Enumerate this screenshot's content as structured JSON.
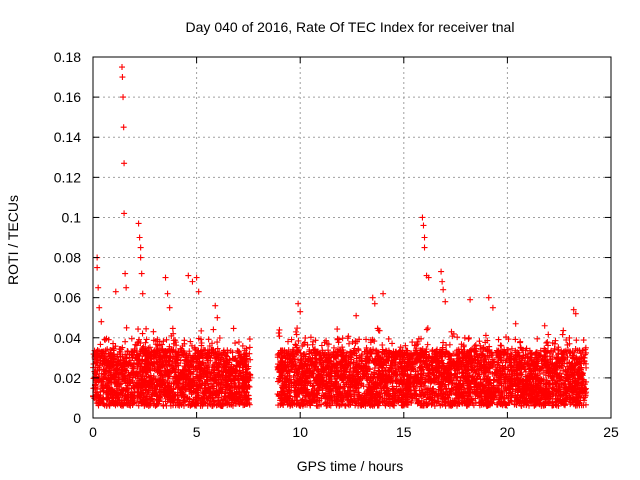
{
  "chart_data": {
    "type": "scatter",
    "title": "Day 040 of 2016, Rate Of TEC Index for receiver tnal",
    "xlabel": "GPS time / hours",
    "ylabel": "ROTI / TECUs",
    "xlim": [
      0,
      25
    ],
    "ylim": [
      0,
      0.18
    ],
    "xticks": [
      0,
      5,
      10,
      15,
      20,
      25
    ],
    "xtick_labels": [
      "0",
      "5",
      "10",
      "15",
      "20",
      "25"
    ],
    "yticks": [
      0,
      0.02,
      0.04,
      0.06,
      0.08,
      0.1,
      0.12,
      0.14,
      0.16,
      0.18
    ],
    "ytick_labels": [
      "0",
      "0.02",
      "0.04",
      "0.06",
      "0.08",
      "0.1",
      "0.12",
      "0.14",
      "0.16",
      "0.18"
    ],
    "grid": true,
    "marker": "+",
    "series_color": "#ff0000",
    "data_gap": [
      7.6,
      8.9
    ],
    "segments": [
      {
        "x": [
          0,
          7.6
        ],
        "base": [
          0.005,
          0.04
        ],
        "dense_max": 0.045
      },
      {
        "x": [
          8.9,
          23.8
        ],
        "base": [
          0.005,
          0.04
        ],
        "dense_max": 0.045
      }
    ],
    "outliers": [
      {
        "x": 0.2,
        "y": 0.08
      },
      {
        "x": 0.2,
        "y": 0.075
      },
      {
        "x": 0.25,
        "y": 0.065
      },
      {
        "x": 0.3,
        "y": 0.055
      },
      {
        "x": 0.4,
        "y": 0.048
      },
      {
        "x": 1.1,
        "y": 0.063
      },
      {
        "x": 1.4,
        "y": 0.175
      },
      {
        "x": 1.42,
        "y": 0.17
      },
      {
        "x": 1.45,
        "y": 0.16
      },
      {
        "x": 1.48,
        "y": 0.145
      },
      {
        "x": 1.5,
        "y": 0.127
      },
      {
        "x": 1.5,
        "y": 0.102
      },
      {
        "x": 1.55,
        "y": 0.072
      },
      {
        "x": 1.6,
        "y": 0.065
      },
      {
        "x": 2.2,
        "y": 0.097
      },
      {
        "x": 2.25,
        "y": 0.09
      },
      {
        "x": 2.3,
        "y": 0.085
      },
      {
        "x": 2.3,
        "y": 0.08
      },
      {
        "x": 2.35,
        "y": 0.072
      },
      {
        "x": 2.4,
        "y": 0.062
      },
      {
        "x": 3.5,
        "y": 0.07
      },
      {
        "x": 3.6,
        "y": 0.062
      },
      {
        "x": 3.7,
        "y": 0.055
      },
      {
        "x": 4.6,
        "y": 0.071
      },
      {
        "x": 4.8,
        "y": 0.068
      },
      {
        "x": 5.0,
        "y": 0.07
      },
      {
        "x": 5.1,
        "y": 0.063
      },
      {
        "x": 5.9,
        "y": 0.056
      },
      {
        "x": 6.0,
        "y": 0.05
      },
      {
        "x": 9.9,
        "y": 0.057
      },
      {
        "x": 10.0,
        "y": 0.053
      },
      {
        "x": 12.7,
        "y": 0.051
      },
      {
        "x": 13.5,
        "y": 0.06
      },
      {
        "x": 13.6,
        "y": 0.057
      },
      {
        "x": 14.0,
        "y": 0.062
      },
      {
        "x": 15.9,
        "y": 0.1
      },
      {
        "x": 15.95,
        "y": 0.096
      },
      {
        "x": 16.0,
        "y": 0.09
      },
      {
        "x": 16.0,
        "y": 0.085
      },
      {
        "x": 16.1,
        "y": 0.071
      },
      {
        "x": 16.2,
        "y": 0.07
      },
      {
        "x": 16.8,
        "y": 0.073
      },
      {
        "x": 16.85,
        "y": 0.068
      },
      {
        "x": 16.9,
        "y": 0.064
      },
      {
        "x": 17.0,
        "y": 0.058
      },
      {
        "x": 18.2,
        "y": 0.059
      },
      {
        "x": 19.1,
        "y": 0.06
      },
      {
        "x": 19.3,
        "y": 0.055
      },
      {
        "x": 20.4,
        "y": 0.047
      },
      {
        "x": 21.8,
        "y": 0.046
      },
      {
        "x": 23.2,
        "y": 0.054
      },
      {
        "x": 23.3,
        "y": 0.052
      }
    ]
  }
}
